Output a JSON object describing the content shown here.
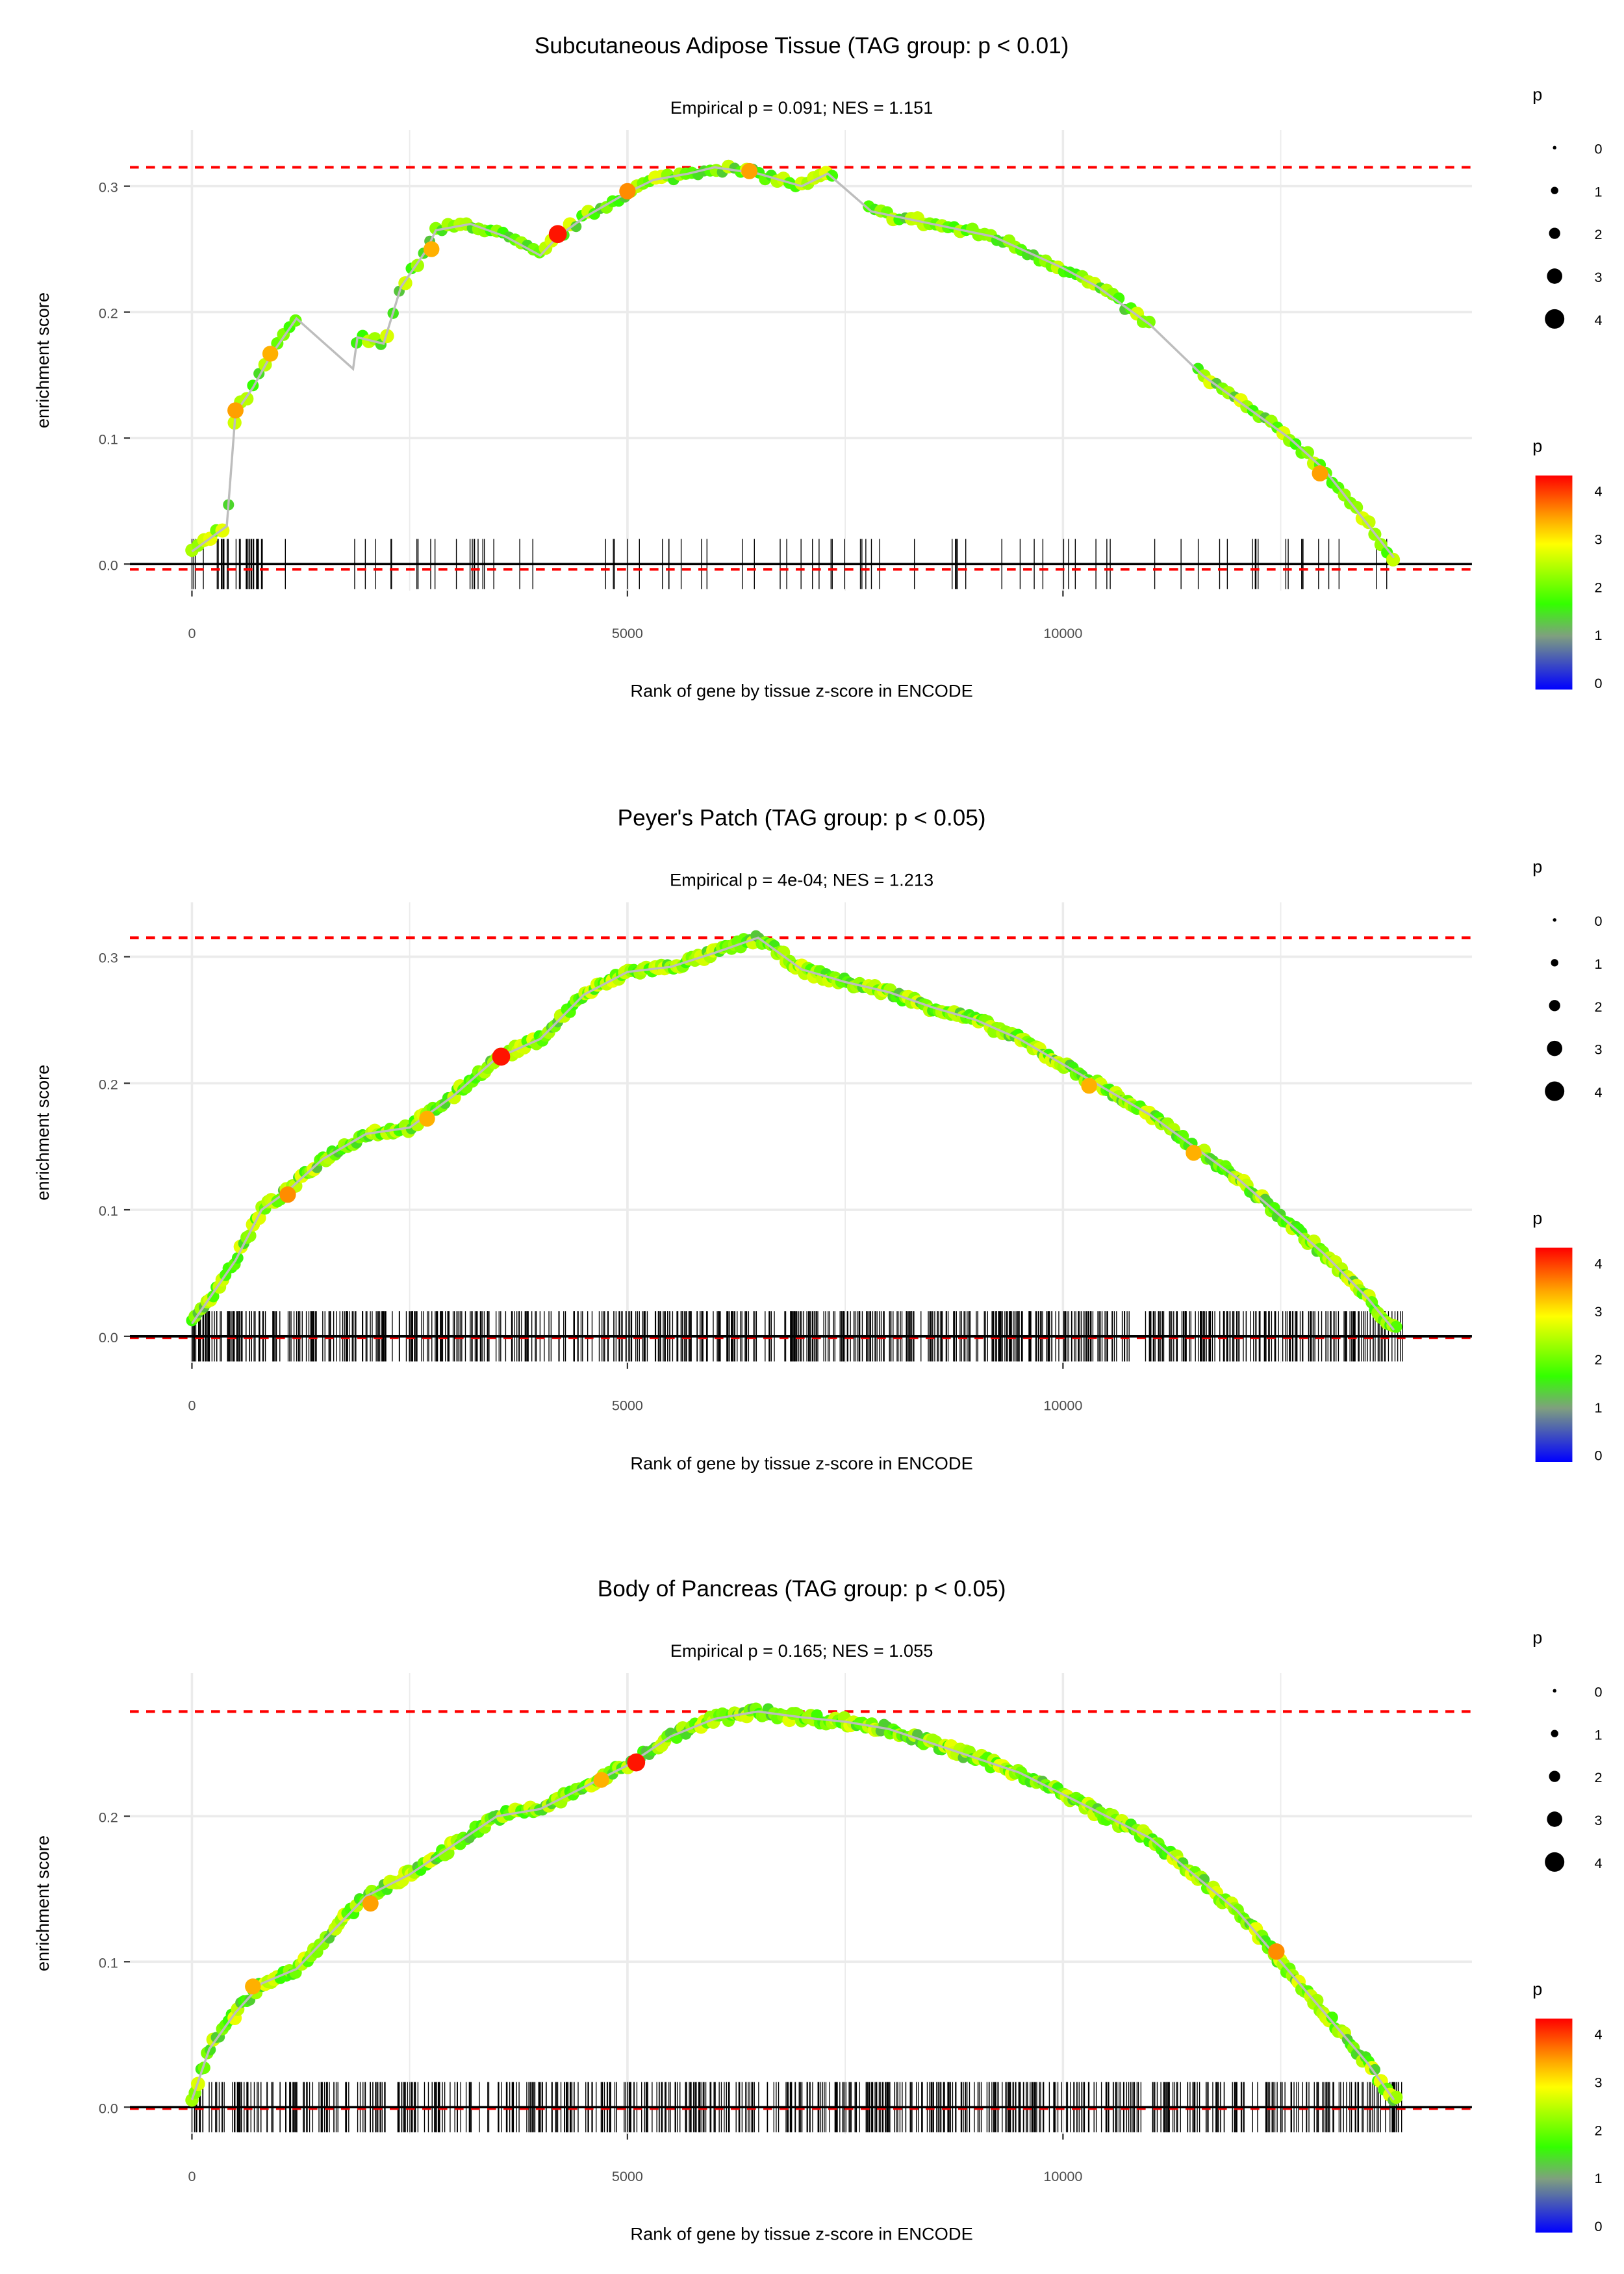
{
  "chart_data": [
    {
      "type": "line",
      "title": "Subcutaneous Adipose Tissue (TAG group: p < 0.01)",
      "subtitle": "Empirical p = 0.091; NES = 1.151",
      "xlabel": "Rank of gene by tissue z-score in ENCODE",
      "ylabel": "enrichment score",
      "xlim": [
        -700,
        14700
      ],
      "ylim": [
        -0.03,
        0.325
      ],
      "xticks": [
        "0",
        "5000",
        "10000"
      ],
      "xtick_values": [
        0,
        5000,
        10000
      ],
      "yticks": [
        "0.0",
        "0.1",
        "0.2",
        "0.3"
      ],
      "ytick_values": [
        0,
        0.1,
        0.2,
        0.3
      ],
      "max_es": 0.315,
      "min_es": -0.003,
      "curve": [
        [
          0,
          0.01
        ],
        [
          200,
          0.02
        ],
        [
          400,
          0.03
        ],
        [
          500,
          0.12
        ],
        [
          700,
          0.14
        ],
        [
          900,
          0.165
        ],
        [
          1200,
          0.195
        ],
        [
          1850,
          0.155
        ],
        [
          1900,
          0.18
        ],
        [
          2200,
          0.175
        ],
        [
          2400,
          0.22
        ],
        [
          2700,
          0.25
        ],
        [
          2800,
          0.265
        ],
        [
          3200,
          0.27
        ],
        [
          3400,
          0.265
        ],
        [
          3600,
          0.26
        ],
        [
          4000,
          0.245
        ],
        [
          4200,
          0.26
        ],
        [
          4500,
          0.275
        ],
        [
          5000,
          0.295
        ],
        [
          5300,
          0.305
        ],
        [
          5700,
          0.31
        ],
        [
          6000,
          0.315
        ],
        [
          6500,
          0.31
        ],
        [
          7000,
          0.3
        ],
        [
          7300,
          0.31
        ],
        [
          7800,
          0.28
        ],
        [
          8500,
          0.27
        ],
        [
          9200,
          0.26
        ],
        [
          10000,
          0.235
        ],
        [
          10400,
          0.22
        ],
        [
          11000,
          0.19
        ],
        [
          11600,
          0.15
        ],
        [
          12200,
          0.12
        ],
        [
          12600,
          0.1
        ],
        [
          13000,
          0.075
        ],
        [
          13400,
          0.04
        ],
        [
          13800,
          0.005
        ]
      ],
      "highlights": [
        [
          4200,
          0.262,
          4
        ],
        [
          500,
          0.122,
          3.3
        ],
        [
          900,
          0.167,
          3.2
        ],
        [
          2750,
          0.25,
          3.2
        ],
        [
          5000,
          0.296,
          3.4
        ],
        [
          12950,
          0.072,
          3.3
        ],
        [
          6400,
          0.312,
          3.3
        ]
      ],
      "n_hits": 120,
      "hit_density": "sparse"
    },
    {
      "type": "line",
      "title": "Peyer's Patch (TAG group: p < 0.05)",
      "subtitle": "Empirical p = 4e-04; NES = 1.213",
      "xlabel": "Rank of gene by tissue z-score in ENCODE",
      "ylabel": "enrichment score",
      "xlim": [
        -700,
        14700
      ],
      "ylim": [
        -0.01,
        0.325
      ],
      "xticks": [
        "0",
        "5000",
        "10000"
      ],
      "xtick_values": [
        0,
        5000,
        10000
      ],
      "yticks": [
        "0.0",
        "0.1",
        "0.2",
        "0.3"
      ],
      "ytick_values": [
        0,
        0.1,
        0.2,
        0.3
      ],
      "max_es": 0.315,
      "min_es": 0,
      "curve": [
        [
          0,
          0.01
        ],
        [
          200,
          0.03
        ],
        [
          500,
          0.06
        ],
        [
          800,
          0.1
        ],
        [
          1100,
          0.115
        ],
        [
          1500,
          0.14
        ],
        [
          2000,
          0.16
        ],
        [
          2500,
          0.165
        ],
        [
          3000,
          0.19
        ],
        [
          3500,
          0.22
        ],
        [
          4000,
          0.235
        ],
        [
          4500,
          0.27
        ],
        [
          5000,
          0.288
        ],
        [
          5500,
          0.292
        ],
        [
          6000,
          0.303
        ],
        [
          6500,
          0.315
        ],
        [
          7000,
          0.29
        ],
        [
          7500,
          0.28
        ],
        [
          8000,
          0.272
        ],
        [
          8500,
          0.26
        ],
        [
          9000,
          0.25
        ],
        [
          9500,
          0.235
        ],
        [
          10000,
          0.215
        ],
        [
          10500,
          0.195
        ],
        [
          11000,
          0.175
        ],
        [
          11500,
          0.15
        ],
        [
          12000,
          0.125
        ],
        [
          12500,
          0.095
        ],
        [
          13000,
          0.065
        ],
        [
          13500,
          0.03
        ],
        [
          13800,
          0.005
        ]
      ],
      "highlights": [
        [
          3550,
          0.221,
          4
        ],
        [
          1100,
          0.112,
          3.4
        ],
        [
          2700,
          0.172,
          3.2
        ],
        [
          10300,
          0.198,
          3.2
        ],
        [
          11500,
          0.145,
          3.2
        ]
      ],
      "n_hits": 700,
      "hit_density": "dense"
    },
    {
      "type": "line",
      "title": "Body of Pancreas (TAG group: p < 0.05)",
      "subtitle": "Empirical p = 0.165; NES = 1.055",
      "xlabel": "Rank of gene by tissue z-score in ENCODE",
      "ylabel": "enrichment score",
      "xlim": [
        -700,
        14700
      ],
      "ylim": [
        -0.01,
        0.28
      ],
      "xticks": [
        "0",
        "5000",
        "10000"
      ],
      "xtick_values": [
        0,
        5000,
        10000
      ],
      "yticks": [
        "0.0",
        "0.1",
        "0.2"
      ],
      "ytick_values": [
        0,
        0.1,
        0.2
      ],
      "max_es": 0.272,
      "min_es": 0,
      "curve": [
        [
          0,
          0.005
        ],
        [
          200,
          0.04
        ],
        [
          500,
          0.065
        ],
        [
          800,
          0.085
        ],
        [
          1200,
          0.095
        ],
        [
          1600,
          0.12
        ],
        [
          2000,
          0.145
        ],
        [
          2500,
          0.16
        ],
        [
          3000,
          0.18
        ],
        [
          3500,
          0.2
        ],
        [
          4000,
          0.205
        ],
        [
          4500,
          0.22
        ],
        [
          5000,
          0.235
        ],
        [
          5500,
          0.255
        ],
        [
          6000,
          0.267
        ],
        [
          6500,
          0.272
        ],
        [
          7000,
          0.268
        ],
        [
          7500,
          0.265
        ],
        [
          8000,
          0.26
        ],
        [
          8500,
          0.25
        ],
        [
          9000,
          0.24
        ],
        [
          9500,
          0.23
        ],
        [
          10000,
          0.215
        ],
        [
          10500,
          0.2
        ],
        [
          11000,
          0.185
        ],
        [
          11500,
          0.16
        ],
        [
          12000,
          0.135
        ],
        [
          12500,
          0.1
        ],
        [
          13000,
          0.065
        ],
        [
          13500,
          0.03
        ],
        [
          13800,
          0.005
        ]
      ],
      "highlights": [
        [
          5100,
          0.237,
          4
        ],
        [
          12450,
          0.107,
          3.4
        ],
        [
          2050,
          0.14,
          3.3
        ],
        [
          4700,
          0.225,
          3.2
        ],
        [
          700,
          0.083,
          3.2
        ]
      ],
      "n_hits": 650,
      "hit_density": "dense"
    }
  ],
  "legend": {
    "size_title": "p",
    "size_labels": [
      "0",
      "1",
      "2",
      "3",
      "4"
    ],
    "color_title": "p",
    "color_labels": [
      "4",
      "3",
      "2",
      "1",
      "0"
    ],
    "colors": [
      "#0000ff",
      "#7f7f7f",
      "#33ff00",
      "#ffff00",
      "#ff8c00",
      "#ff0000"
    ]
  }
}
